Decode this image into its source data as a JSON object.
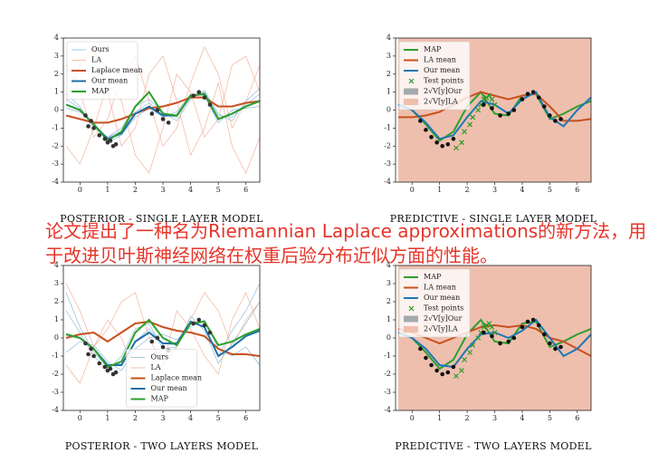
{
  "chart_data": [
    {
      "type": "line",
      "title": "POSTERIOR - SINGLE LAYER MODEL",
      "legend": "upper left",
      "x": [
        -0.5,
        0,
        0.5,
        1,
        1.5,
        2,
        2.5,
        3,
        3.5,
        4,
        4.5,
        5,
        5.5,
        6,
        6.5
      ],
      "xlim": [
        -0.6,
        6.5
      ],
      "ylim": [
        -4,
        4
      ],
      "xticks": [
        0,
        1,
        2,
        3,
        4,
        5,
        6
      ],
      "yticks": [
        -4,
        -3,
        -2,
        -1,
        0,
        1,
        2,
        3,
        4
      ],
      "series": [
        {
          "name": "Ours",
          "kind": "samples",
          "color": "#8fbcdc",
          "values": [
            [
              0.6,
              0.1,
              -0.9,
              -1.5,
              -1.2,
              -0.1,
              0.4,
              -0.2,
              -0.4,
              0.7,
              1.0,
              -0.3,
              -0.4,
              0.3,
              0.9
            ],
            [
              0.1,
              -0.1,
              -0.7,
              -1.8,
              -1.4,
              -0.4,
              0.1,
              -0.4,
              -0.1,
              0.9,
              0.8,
              -0.7,
              0.0,
              0.1,
              0.2
            ],
            [
              0.9,
              0.2,
              -1.0,
              -1.5,
              -1.0,
              0.2,
              0.6,
              -0.1,
              -0.6,
              0.6,
              1.1,
              -0.2,
              -0.6,
              0.5,
              1.2
            ]
          ]
        },
        {
          "name": "LA",
          "kind": "samples",
          "color": "#f0b49c",
          "values": [
            [
              2.5,
              1.0,
              -1.5,
              -0.5,
              1.8,
              3.0,
              0.5,
              -2.0,
              -1.0,
              1.5,
              3.5,
              2.0,
              -1.0,
              0.5,
              2.5
            ],
            [
              -2.0,
              -3.0,
              -1.0,
              1.5,
              0.5,
              -2.5,
              -3.5,
              -1.0,
              2.0,
              1.0,
              -1.5,
              -0.5,
              2.5,
              3.0,
              1.0
            ],
            [
              0.5,
              2.5,
              3.5,
              1.0,
              -2.0,
              -1.0,
              2.0,
              3.0,
              0.5,
              -2.5,
              -1.0,
              1.5,
              -2.0,
              -3.5,
              -1.5
            ]
          ]
        },
        {
          "name": "Laplace mean",
          "kind": "line",
          "color": "#c8501e",
          "values": [
            -0.3,
            -0.5,
            -0.7,
            -0.7,
            -0.5,
            -0.2,
            0.1,
            0.2,
            0.4,
            0.7,
            0.7,
            0.2,
            0.2,
            0.4,
            0.5
          ]
        },
        {
          "name": "Our mean",
          "kind": "line",
          "color": "#1f6fa8",
          "values": [
            0.3,
            0,
            -0.8,
            -1.6,
            -1.3,
            -0.2,
            0.2,
            -0.3,
            -0.3,
            0.8,
            0.9,
            -0.5,
            -0.2,
            0.2,
            0.5
          ]
        },
        {
          "name": "MAP",
          "kind": "line",
          "color": "#2ca02c",
          "values": [
            0.3,
            0,
            -0.8,
            -1.7,
            -1.2,
            0.2,
            1.0,
            -0.2,
            -0.3,
            0.8,
            0.9,
            -0.5,
            -0.2,
            0.2,
            0.5
          ]
        },
        {
          "kind": "scatter",
          "marker": "o",
          "color": "#333333",
          "x": [
            0.2,
            0.4,
            0.5,
            0.7,
            0.9,
            1.0,
            1.2,
            1.3,
            2.6,
            2.8,
            3.0,
            3.2,
            4.1,
            4.3,
            4.5,
            4.7,
            0.3,
            1.1
          ],
          "values": [
            -0.3,
            -0.6,
            -1.0,
            -1.4,
            -1.6,
            -1.8,
            -2.0,
            -1.9,
            -0.2,
            0.0,
            -0.5,
            -0.7,
            0.8,
            1.0,
            0.7,
            0.3,
            -0.9,
            -1.7
          ]
        }
      ]
    },
    {
      "type": "line",
      "title": "PREDICTIVE - SINGLE LAYER MODEL",
      "legend": "upper left",
      "x": [
        -0.5,
        0,
        0.5,
        1,
        1.5,
        2,
        2.5,
        3,
        3.5,
        4,
        4.5,
        5,
        5.5,
        6,
        6.5
      ],
      "xlim": [
        -0.6,
        6.5
      ],
      "ylim": [
        -4,
        4
      ],
      "xticks": [
        0,
        1,
        2,
        3,
        4,
        5,
        6
      ],
      "yticks": [
        -4,
        -3,
        -2,
        -1,
        0,
        1,
        2,
        3,
        4
      ],
      "series": [
        {
          "name": "MAP",
          "kind": "line",
          "color": "#2ca02c",
          "values": [
            0.3,
            0,
            -0.8,
            -1.7,
            -1.2,
            0.2,
            1.0,
            -0.2,
            -0.3,
            0.8,
            0.9,
            -0.5,
            -0.2,
            0.2,
            0.5
          ]
        },
        {
          "name": "LA mean",
          "kind": "line",
          "color": "#c8501e",
          "values": [
            -0.4,
            -0.4,
            -0.3,
            -0.1,
            0.3,
            0.7,
            1.0,
            0.8,
            0.6,
            0.8,
            0.9,
            0.2,
            -0.6,
            -0.6,
            -0.5
          ]
        },
        {
          "name": "Our mean",
          "kind": "line",
          "color": "#1f77b4",
          "values": [
            0.3,
            0,
            -0.7,
            -1.6,
            -1.4,
            -0.4,
            0.5,
            0.3,
            -0.2,
            0.6,
            1.0,
            -0.4,
            -0.9,
            0.0,
            0.7
          ]
        },
        {
          "name": "Test points",
          "kind": "scatter",
          "marker": "x",
          "color": "#2a9a2a",
          "x": [
            1.6,
            1.8,
            1.9,
            2.1,
            2.2,
            2.4,
            2.5,
            2.6,
            2.7,
            2.8,
            2.9,
            3.0
          ],
          "values": [
            -2.1,
            -1.8,
            -1.2,
            -0.8,
            -0.4,
            0.0,
            0.3,
            0.6,
            0.7,
            0.8,
            0.6,
            0.3
          ]
        },
        {
          "name": "2√V[y]Our",
          "kind": "band",
          "color": "#a3a9ad",
          "upper": [
            2.5,
            1.2,
            0.2,
            -0.8,
            -0.4,
            0.8,
            1.5,
            1.0,
            0.6,
            1.4,
            1.8,
            0.6,
            0.5,
            1.8,
            2.8
          ],
          "lower": [
            -2.0,
            -1.2,
            -1.6,
            -2.4,
            -2.4,
            -1.6,
            -0.5,
            -0.4,
            -1.0,
            -0.2,
            0.2,
            -1.4,
            -2.3,
            -1.8,
            -1.4
          ]
        },
        {
          "name": "2√V[y]LA",
          "kind": "band",
          "color": "#efbfae",
          "upper": [
            6,
            6,
            6,
            6,
            6,
            6,
            6,
            6,
            6,
            6,
            6,
            6,
            6,
            6,
            6
          ],
          "lower": [
            -6,
            -6,
            -6,
            -6,
            -6,
            -6,
            -6,
            -6,
            -6,
            -6,
            -6,
            -6,
            -6,
            -6,
            -6
          ]
        },
        {
          "kind": "scatter",
          "marker": "o",
          "color": "#111111",
          "x": [
            0.3,
            0.5,
            0.7,
            0.9,
            1.1,
            1.3,
            1.5,
            2.6,
            2.9,
            3.2,
            3.5,
            3.7,
            4.0,
            4.2,
            4.4,
            4.6,
            4.8,
            5.0,
            5.2,
            5.4
          ],
          "values": [
            -0.6,
            -1.1,
            -1.5,
            -1.8,
            -2.0,
            -1.9,
            -1.6,
            0.3,
            0.1,
            -0.3,
            -0.2,
            0.0,
            0.6,
            0.9,
            1.0,
            0.7,
            0.2,
            -0.3,
            -0.6,
            -0.5
          ]
        }
      ]
    },
    {
      "type": "line",
      "title": "POSTERIOR - TWO LAYERS MODEL",
      "legend": "lower center",
      "x": [
        -0.5,
        0,
        0.5,
        1,
        1.5,
        2,
        2.5,
        3,
        3.5,
        4,
        4.5,
        5,
        5.5,
        6,
        6.5
      ],
      "xlim": [
        -0.6,
        6.5
      ],
      "ylim": [
        -4,
        4
      ],
      "xticks": [
        0,
        1,
        2,
        3,
        4,
        5,
        6
      ],
      "yticks": [
        -4,
        -3,
        -2,
        -1,
        0,
        1,
        2,
        3,
        4
      ],
      "series": [
        {
          "name": "Ours",
          "kind": "samples",
          "color": "#8fbcdc",
          "values": [
            [
              1.5,
              0.3,
              -1.0,
              -1.8,
              -1.0,
              0.5,
              0.8,
              -0.6,
              -0.5,
              1.2,
              0.4,
              -1.4,
              -0.3,
              0.8,
              2.0
            ],
            [
              -0.8,
              -0.2,
              -0.4,
              -1.3,
              -1.8,
              -0.6,
              0.0,
              0.2,
              -0.1,
              0.6,
              1.0,
              -0.6,
              -1.0,
              -0.5,
              -1.5
            ],
            [
              2.5,
              0.6,
              -0.8,
              -1.6,
              -1.4,
              -0.2,
              0.5,
              -0.3,
              -0.4,
              0.9,
              0.6,
              -1.0,
              0.4,
              1.5,
              3.0
            ]
          ]
        },
        {
          "name": "LA",
          "kind": "samples",
          "color": "#f0b49c",
          "values": [
            [
              3.0,
              1.5,
              -0.5,
              0.5,
              2.0,
              2.5,
              0.0,
              -1.5,
              -0.5,
              1.0,
              2.5,
              1.5,
              -0.5,
              1.0,
              2.0
            ],
            [
              -1.5,
              -2.5,
              -0.5,
              1.0,
              0.0,
              -2.0,
              -3.0,
              -1.5,
              1.5,
              0.5,
              -1.0,
              -2.0,
              1.0,
              2.5,
              0.5
            ]
          ]
        },
        {
          "name": "Laplace mean",
          "kind": "line",
          "color": "#c8501e",
          "values": [
            0,
            0.2,
            0.3,
            -0.2,
            0.3,
            0.8,
            0.9,
            0.6,
            0.4,
            0.3,
            0.1,
            -0.6,
            -0.9,
            -0.9,
            -1.0
          ]
        },
        {
          "name": "Our mean",
          "kind": "line",
          "color": "#1f6fa8",
          "values": [
            0.2,
            0,
            -0.6,
            -1.5,
            -1.5,
            -0.2,
            0.3,
            -0.3,
            -0.3,
            0.9,
            0.6,
            -1.0,
            -0.5,
            0.1,
            0.4
          ]
        },
        {
          "name": "MAP",
          "kind": "line",
          "color": "#2ca02c",
          "values": [
            0.2,
            0,
            -0.6,
            -1.6,
            -1.3,
            0.3,
            1.0,
            0.0,
            -0.4,
            0.8,
            0.9,
            -0.4,
            -0.2,
            0.2,
            0.5
          ]
        },
        {
          "kind": "scatter",
          "marker": "o",
          "color": "#333333",
          "x": [
            0.2,
            0.4,
            0.5,
            0.7,
            0.9,
            1.0,
            1.2,
            1.3,
            2.6,
            2.8,
            3.0,
            3.2,
            4.1,
            4.3,
            4.5,
            4.7,
            0.3,
            1.1
          ],
          "values": [
            -0.3,
            -0.6,
            -1.0,
            -1.4,
            -1.6,
            -1.8,
            -2.0,
            -1.9,
            -0.2,
            0.0,
            -0.5,
            -0.7,
            0.8,
            1.0,
            0.7,
            0.3,
            -0.9,
            -1.7
          ]
        }
      ]
    },
    {
      "type": "line",
      "title": "PREDICTIVE - TWO LAYERS MODEL",
      "legend": "upper left",
      "x": [
        -0.5,
        0,
        0.5,
        1,
        1.5,
        2,
        2.5,
        3,
        3.5,
        4,
        4.5,
        5,
        5.5,
        6,
        6.5
      ],
      "xlim": [
        -0.6,
        6.5
      ],
      "ylim": [
        -4,
        4
      ],
      "xticks": [
        0,
        1,
        2,
        3,
        4,
        5,
        6
      ],
      "yticks": [
        -4,
        -3,
        -2,
        -1,
        0,
        1,
        2,
        3,
        4
      ],
      "series": [
        {
          "name": "MAP",
          "kind": "line",
          "color": "#2ca02c",
          "values": [
            0.3,
            0,
            -0.8,
            -1.7,
            -1.2,
            0.2,
            1.0,
            -0.2,
            -0.3,
            0.8,
            0.9,
            -0.5,
            -0.2,
            0.2,
            0.5
          ]
        },
        {
          "name": "LA mean",
          "kind": "line",
          "color": "#c8501e",
          "values": [
            0.5,
            0.3,
            0.0,
            -0.3,
            0.0,
            0.3,
            0.6,
            0.7,
            0.6,
            0.7,
            0.5,
            0.0,
            -0.2,
            -0.6,
            -1.0
          ]
        },
        {
          "name": "Our mean",
          "kind": "line",
          "color": "#1f77b4",
          "values": [
            0.3,
            0,
            -0.6,
            -1.5,
            -1.6,
            -0.6,
            0.2,
            0.3,
            0.0,
            0.4,
            1.0,
            0.0,
            -1.0,
            -0.6,
            0.2
          ]
        },
        {
          "name": "Test points",
          "kind": "scatter",
          "marker": "x",
          "color": "#2a9a2a",
          "x": [
            1.6,
            1.8,
            1.9,
            2.1,
            2.2,
            2.4,
            2.5,
            2.6,
            2.7,
            2.8,
            2.9,
            3.0
          ],
          "values": [
            -2.1,
            -1.8,
            -1.2,
            -0.8,
            -0.4,
            0.0,
            0.3,
            0.6,
            0.7,
            0.8,
            0.6,
            0.3
          ]
        },
        {
          "name": "2√V[y]Our",
          "kind": "band",
          "color": "#a3a9ad",
          "upper": [
            3.5,
            2.5,
            1.0,
            -0.5,
            -0.2,
            0.8,
            1.5,
            1.5,
            1.0,
            1.5,
            2.5,
            3.2,
            1.5,
            2.0,
            3.5
          ],
          "lower": [
            -3.0,
            -1.5,
            -1.8,
            -2.3,
            -2.6,
            -2.0,
            -1.3,
            -0.8,
            -1.0,
            -0.5,
            -0.3,
            -1.5,
            -2.5,
            -3.2,
            -3.0
          ]
        },
        {
          "name": "2√V[y]LA",
          "kind": "band",
          "color": "#efbfae",
          "upper": [
            6,
            6,
            6,
            6,
            6,
            6,
            6,
            6,
            6,
            6,
            6,
            6,
            6,
            6,
            6
          ],
          "lower": [
            -6,
            -6,
            -6,
            -6,
            -6,
            -6,
            -6,
            -6,
            -6,
            -6,
            -6,
            -6,
            -6,
            -6,
            -6
          ]
        },
        {
          "kind": "scatter",
          "marker": "o",
          "color": "#111111",
          "x": [
            0.3,
            0.5,
            0.7,
            0.9,
            1.1,
            1.3,
            1.5,
            2.6,
            2.9,
            3.2,
            3.5,
            3.7,
            4.0,
            4.2,
            4.4,
            4.6,
            4.8,
            5.0,
            5.2,
            5.4
          ],
          "values": [
            -0.6,
            -1.1,
            -1.5,
            -1.8,
            -2.0,
            -1.9,
            -1.6,
            0.3,
            0.1,
            -0.3,
            -0.2,
            0.0,
            0.6,
            0.9,
            1.0,
            0.7,
            0.2,
            -0.3,
            -0.6,
            -0.5
          ]
        }
      ]
    }
  ],
  "subtitle": [
    "论文提出了一种名为Riemannian Laplace approximations的新方法，用",
    "于改进贝叶斯神经网络在权重后验分布近似方面的性能。"
  ]
}
